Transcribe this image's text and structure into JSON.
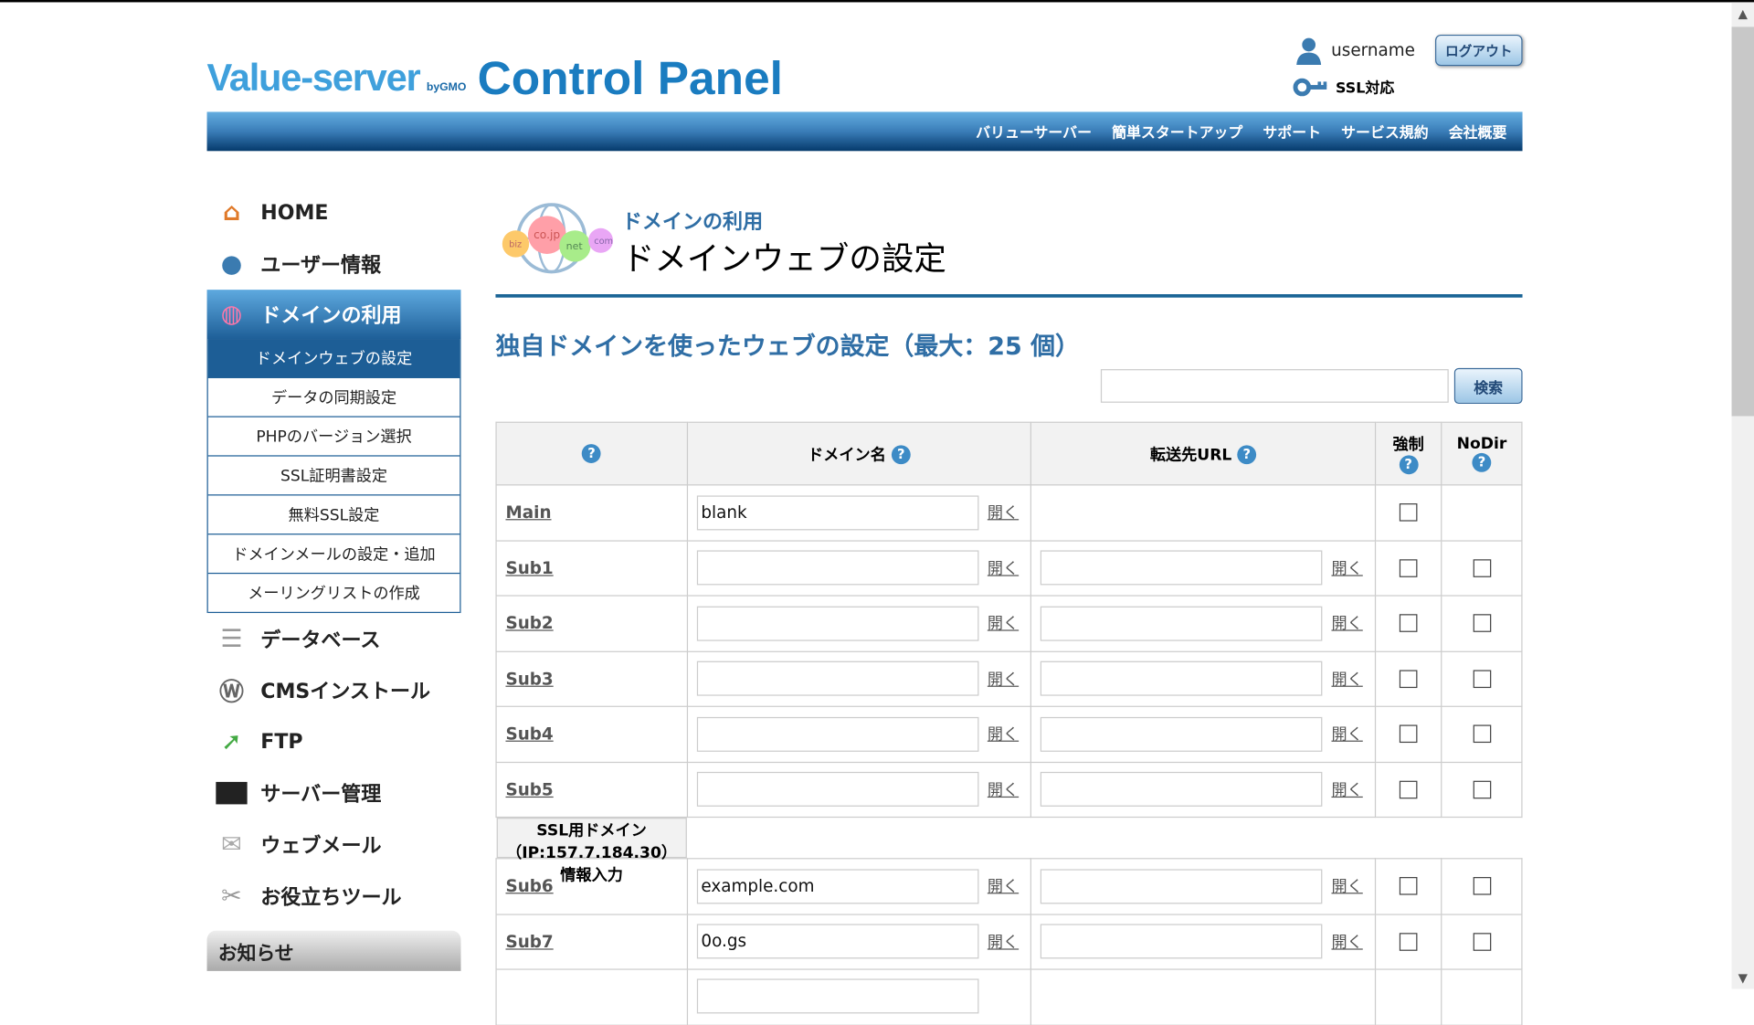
{
  "header": {
    "logo_text": "Value-server",
    "logo_by": "byGMO",
    "title": "Control Panel",
    "username": "username",
    "logout": "ログアウト",
    "ssl": "SSL対応"
  },
  "nav": [
    "バリューサーバー",
    "簡単スタートアップ",
    "サポート",
    "サービス規約",
    "会社概要"
  ],
  "sidebar": {
    "top": [
      {
        "label": "HOME",
        "icon": "home-icon"
      },
      {
        "label": "ユーザー情報",
        "icon": "user-icon"
      }
    ],
    "active": "ドメインの利用",
    "sub": [
      "ドメインウェブの設定",
      "データの同期設定",
      "PHPのバージョン選択",
      "SSL証明書設定",
      "無料SSL設定",
      "ドメインメールの設定・追加",
      "メーリングリストの作成"
    ],
    "bottom": [
      {
        "label": "データベース",
        "icon": "database-icon"
      },
      {
        "label": "CMSインストール",
        "icon": "wordpress-icon"
      },
      {
        "label": "FTP",
        "icon": "ftp-icon"
      },
      {
        "label": "サーバー管理",
        "icon": "server-icon"
      },
      {
        "label": "ウェブメール",
        "icon": "mail-icon"
      },
      {
        "label": "お役立ちツール",
        "icon": "tools-icon"
      }
    ],
    "notice": "お知らせ"
  },
  "main": {
    "breadcrumb": "ドメインの利用",
    "title": "ドメインウェブの設定",
    "section": "独自ドメインを使ったウェブの設定（最大：25 個）",
    "search_value": "",
    "search_button": "検索",
    "globe_labels": [
      "biz",
      "co.jp",
      "net",
      "com"
    ],
    "table": {
      "headers": [
        "",
        "ドメイン名",
        "転送先URL",
        "強制",
        "NoDir"
      ],
      "help": "?",
      "open": "開く",
      "rows": [
        {
          "label": "Main",
          "domain": "blank",
          "url": ""
        },
        {
          "label": "Sub1",
          "domain": "",
          "url": ""
        },
        {
          "label": "Sub2",
          "domain": "",
          "url": ""
        },
        {
          "label": "Sub3",
          "domain": "",
          "url": ""
        },
        {
          "label": "Sub4",
          "domain": "",
          "url": ""
        },
        {
          "label": "Sub5",
          "domain": "",
          "url": ""
        }
      ],
      "ssl_header": "SSL用ドメイン（IP:157.7.184.30）情報入力",
      "ssl_rows": [
        {
          "label": "Sub6",
          "domain": "example.com",
          "url": ""
        },
        {
          "label": "Sub7",
          "domain": "0o.gs",
          "url": ""
        }
      ]
    }
  }
}
